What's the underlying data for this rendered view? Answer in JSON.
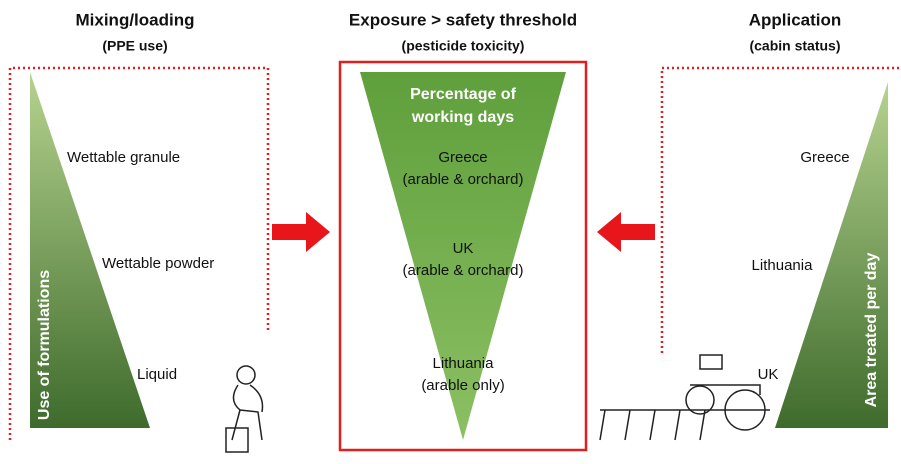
{
  "panels": [
    {
      "title": "Mixing/loading",
      "subtitle": "(PPE use)",
      "axis_label": "Use of formulations",
      "items": [
        {
          "lines": [
            "Wettable granule"
          ]
        },
        {
          "lines": [
            "Wettable powder"
          ]
        },
        {
          "lines": [
            "Liquid"
          ]
        }
      ]
    },
    {
      "title": "Exposure > safety threshold",
      "subtitle": "(pesticide toxicity)",
      "header": [
        "Percentage of",
        "working days"
      ],
      "items": [
        {
          "lines": [
            "Greece",
            "(arable & orchard)"
          ]
        },
        {
          "lines": [
            "UK",
            "(arable & orchard)"
          ]
        },
        {
          "lines": [
            "Lithuania",
            "(arable only)"
          ]
        }
      ]
    },
    {
      "title": "Application",
      "subtitle": "(cabin status)",
      "axis_label": "Area treated per day",
      "items": [
        {
          "lines": [
            "Greece"
          ]
        },
        {
          "lines": [
            "Lithuania"
          ]
        },
        {
          "lines": [
            "UK"
          ]
        }
      ]
    }
  ]
}
